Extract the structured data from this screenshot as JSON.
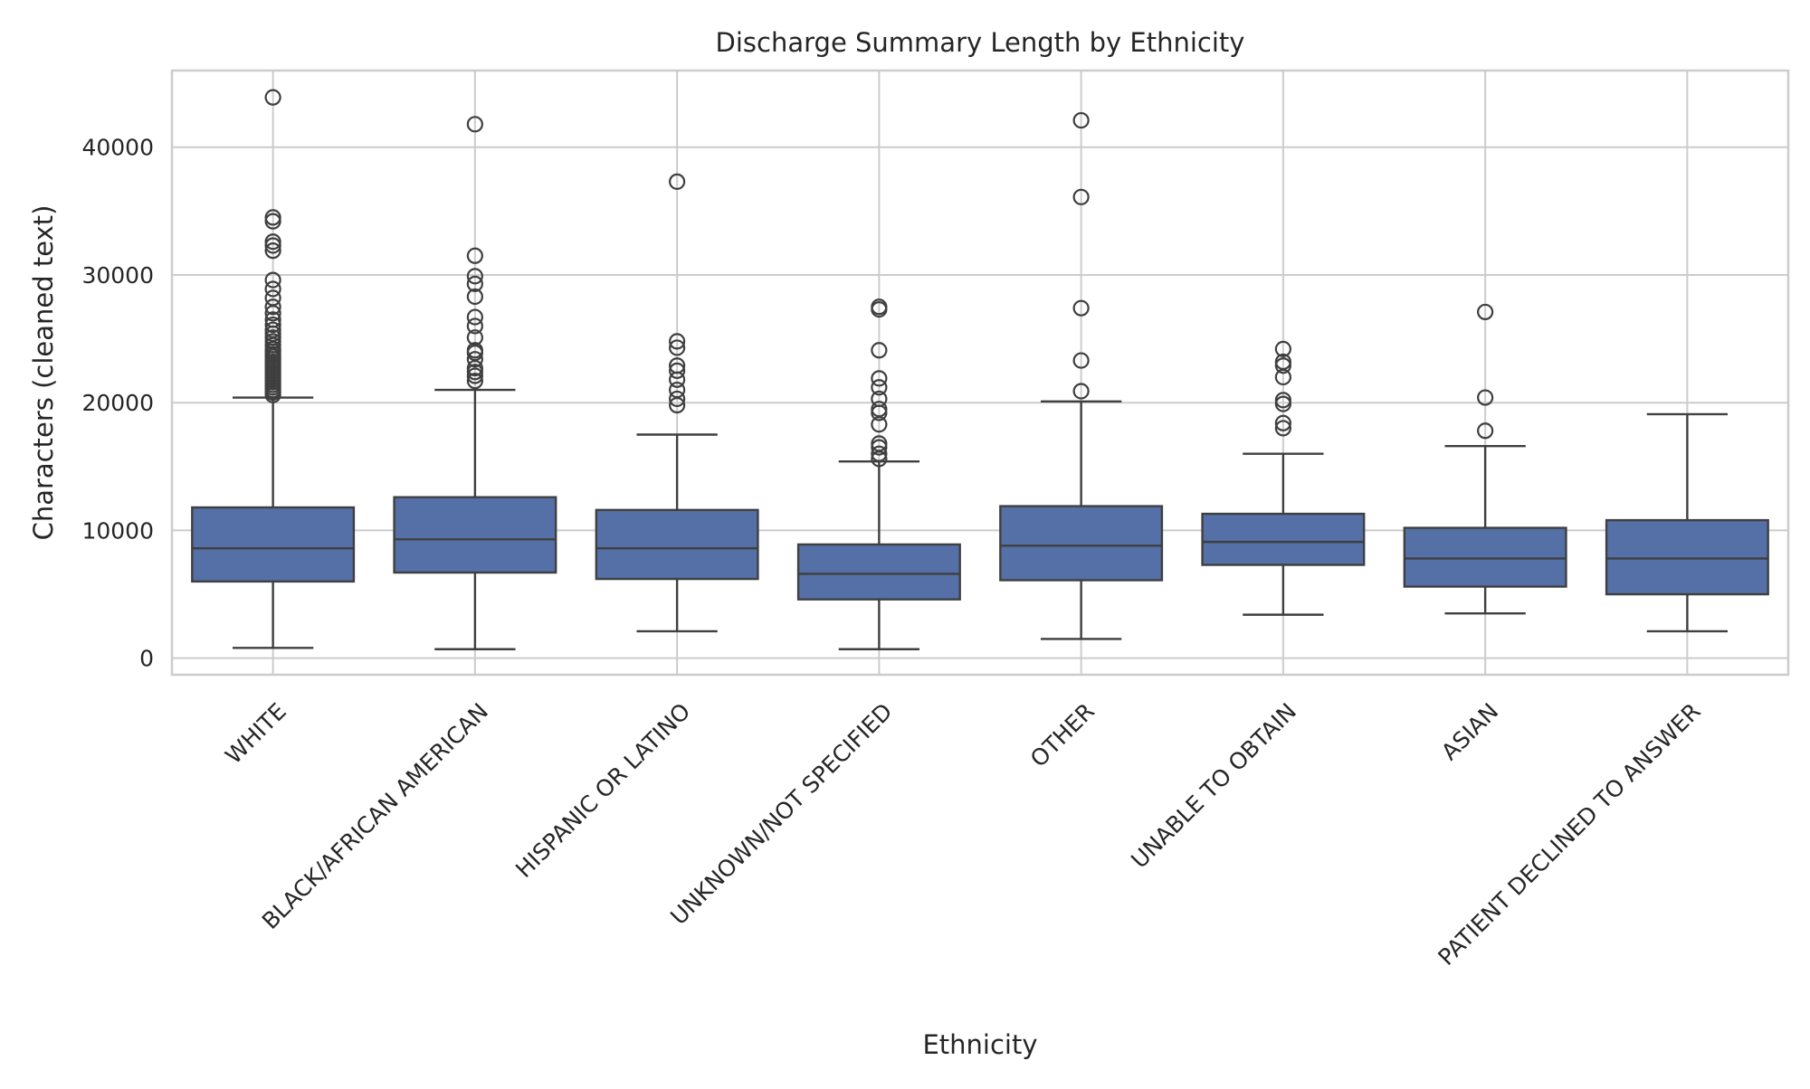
{
  "chart_data": {
    "type": "box",
    "title": "Discharge Summary Length by Ethnicity",
    "xlabel": "Ethnicity",
    "ylabel": "Characters (cleaned text)",
    "ylim": [
      -1300,
      46000
    ],
    "yticks": [
      0,
      10000,
      20000,
      30000,
      40000
    ],
    "grid": true,
    "box_color": "#5470a6",
    "line_color": "#3f3f3f",
    "categories": [
      "WHITE",
      "BLACK/AFRICAN AMERICAN",
      "HISPANIC OR LATINO",
      "UNKNOWN/NOT SPECIFIED",
      "OTHER",
      "UNABLE TO OBTAIN",
      "ASIAN",
      "PATIENT DECLINED TO ANSWER"
    ],
    "boxes": [
      {
        "category": "WHITE",
        "whislo": 800,
        "q1": 6000,
        "med": 8600,
        "q3": 11800,
        "whishi": 20400,
        "fliers": [
          20600,
          20800,
          21000,
          21200,
          21400,
          21600,
          21800,
          22000,
          22200,
          22400,
          22600,
          22800,
          23000,
          23200,
          23400,
          23600,
          23800,
          24000,
          24200,
          24500,
          24800,
          25100,
          25400,
          25700,
          26100,
          26500,
          27000,
          27500,
          28200,
          28900,
          29600,
          31900,
          32300,
          32600,
          34200,
          34500,
          43900
        ]
      },
      {
        "category": "BLACK/AFRICAN AMERICAN",
        "whislo": 700,
        "q1": 6700,
        "med": 9300,
        "q3": 12600,
        "whishi": 21000,
        "fliers": [
          21700,
          22100,
          22400,
          22700,
          23400,
          23900,
          24100,
          25100,
          26000,
          26700,
          28300,
          29300,
          29900,
          31500,
          41800
        ]
      },
      {
        "category": "HISPANIC OR LATINO",
        "whislo": 2100,
        "q1": 6200,
        "med": 8600,
        "q3": 11600,
        "whishi": 17500,
        "fliers": [
          19800,
          20300,
          21000,
          21800,
          22500,
          22900,
          24300,
          24800,
          37300
        ]
      },
      {
        "category": "UNKNOWN/NOT SPECIFIED",
        "whislo": 700,
        "q1": 4600,
        "med": 6600,
        "q3": 8900,
        "whishi": 15400,
        "fliers": [
          15600,
          16000,
          16500,
          16800,
          18300,
          19200,
          19500,
          20300,
          21200,
          21900,
          24100,
          27300,
          27500
        ]
      },
      {
        "category": "OTHER",
        "whislo": 1500,
        "q1": 6100,
        "med": 8800,
        "q3": 11900,
        "whishi": 20100,
        "fliers": [
          20900,
          23300,
          27400,
          36100,
          42100
        ]
      },
      {
        "category": "UNABLE TO OBTAIN",
        "whislo": 3400,
        "q1": 7300,
        "med": 9100,
        "q3": 11300,
        "whishi": 16000,
        "fliers": [
          18000,
          18400,
          19900,
          20200,
          22000,
          22900,
          23200,
          24200
        ]
      },
      {
        "category": "ASIAN",
        "whislo": 3500,
        "q1": 5600,
        "med": 7800,
        "q3": 10200,
        "whishi": 16600,
        "fliers": [
          17800,
          20400,
          27100
        ]
      },
      {
        "category": "PATIENT DECLINED TO ANSWER",
        "whislo": 2100,
        "q1": 5000,
        "med": 7800,
        "q3": 10800,
        "whishi": 19100,
        "fliers": []
      }
    ]
  }
}
